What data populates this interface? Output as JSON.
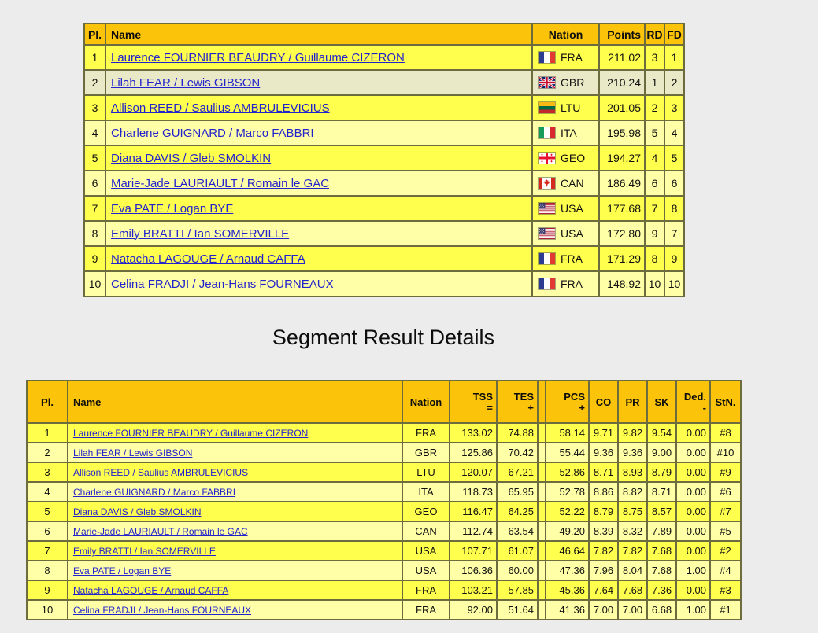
{
  "colors": {
    "header_gold": "#FCC30B",
    "row_bright": "#FFFF4D",
    "row_pale": "#FFFFA8",
    "row_highlight": "#E9E9C7",
    "link_blue": "#2323CD",
    "page_background": "#ECECEC"
  },
  "segment_title": "Segment Result Details",
  "summary_table": {
    "columns": [
      {
        "key": "pl",
        "label": "Pl."
      },
      {
        "key": "name",
        "label": "Name"
      },
      {
        "key": "nation",
        "label": "Nation"
      },
      {
        "key": "points",
        "label": "Points"
      },
      {
        "key": "rd",
        "label": "RD"
      },
      {
        "key": "fd",
        "label": "FD"
      }
    ],
    "highlighted_row": 2,
    "rows": [
      {
        "pl": "1",
        "name": "Laurence FOURNIER BEAUDRY / Guillaume CIZERON",
        "nation": "FRA",
        "points": "211.02",
        "rd": "3",
        "fd": "1"
      },
      {
        "pl": "2",
        "name": "Lilah FEAR / Lewis GIBSON",
        "nation": "GBR",
        "points": "210.24",
        "rd": "1",
        "fd": "2"
      },
      {
        "pl": "3",
        "name": "Allison REED / Saulius AMBRULEVICIUS",
        "nation": "LTU",
        "points": "201.05",
        "rd": "2",
        "fd": "3"
      },
      {
        "pl": "4",
        "name": "Charlene GUIGNARD / Marco FABBRI",
        "nation": "ITA",
        "points": "195.98",
        "rd": "5",
        "fd": "4"
      },
      {
        "pl": "5",
        "name": "Diana DAVIS / Gleb SMOLKIN",
        "nation": "GEO",
        "points": "194.27",
        "rd": "4",
        "fd": "5"
      },
      {
        "pl": "6",
        "name": "Marie-Jade LAURIAULT / Romain le GAC",
        "nation": "CAN",
        "points": "186.49",
        "rd": "6",
        "fd": "6"
      },
      {
        "pl": "7",
        "name": "Eva PATE / Logan BYE",
        "nation": "USA",
        "points": "177.68",
        "rd": "7",
        "fd": "8"
      },
      {
        "pl": "8",
        "name": "Emily BRATTI / Ian SOMERVILLE",
        "nation": "USA",
        "points": "172.80",
        "rd": "9",
        "fd": "7"
      },
      {
        "pl": "9",
        "name": "Natacha LAGOUGE / Arnaud CAFFA",
        "nation": "FRA",
        "points": "171.29",
        "rd": "8",
        "fd": "9"
      },
      {
        "pl": "10",
        "name": "Celina FRADJI / Jean-Hans FOURNEAUX",
        "nation": "FRA",
        "points": "148.92",
        "rd": "10",
        "fd": "10"
      }
    ]
  },
  "details_table": {
    "columns": [
      {
        "key": "pl",
        "label": "Pl."
      },
      {
        "key": "name",
        "label": "Name"
      },
      {
        "key": "nation",
        "label": "Nation"
      },
      {
        "key": "tss",
        "label": "TSS",
        "sub": "="
      },
      {
        "key": "tes",
        "label": "TES",
        "sub": "+"
      },
      {
        "key": "sep",
        "label": ""
      },
      {
        "key": "pcs",
        "label": "PCS",
        "sub": "+"
      },
      {
        "key": "co",
        "label": "CO"
      },
      {
        "key": "pr",
        "label": "PR"
      },
      {
        "key": "sk",
        "label": "SK"
      },
      {
        "key": "ded",
        "label": "Ded.",
        "sub": "-"
      },
      {
        "key": "stn",
        "label": "StN."
      }
    ],
    "rows": [
      {
        "pl": "1",
        "name": "Laurence FOURNIER BEAUDRY / Guillaume CIZERON",
        "nation": "FRA",
        "tss": "133.02",
        "tes": "74.88",
        "pcs": "58.14",
        "co": "9.71",
        "pr": "9.82",
        "sk": "9.54",
        "ded": "0.00",
        "stn": "#8"
      },
      {
        "pl": "2",
        "name": "Lilah FEAR / Lewis GIBSON",
        "nation": "GBR",
        "tss": "125.86",
        "tes": "70.42",
        "pcs": "55.44",
        "co": "9.36",
        "pr": "9.36",
        "sk": "9.00",
        "ded": "0.00",
        "stn": "#10"
      },
      {
        "pl": "3",
        "name": "Allison REED / Saulius AMBRULEVICIUS",
        "nation": "LTU",
        "tss": "120.07",
        "tes": "67.21",
        "pcs": "52.86",
        "co": "8.71",
        "pr": "8.93",
        "sk": "8.79",
        "ded": "0.00",
        "stn": "#9"
      },
      {
        "pl": "4",
        "name": "Charlene GUIGNARD / Marco FABBRI",
        "nation": "ITA",
        "tss": "118.73",
        "tes": "65.95",
        "pcs": "52.78",
        "co": "8.86",
        "pr": "8.82",
        "sk": "8.71",
        "ded": "0.00",
        "stn": "#6"
      },
      {
        "pl": "5",
        "name": "Diana DAVIS / Gleb SMOLKIN",
        "nation": "GEO",
        "tss": "116.47",
        "tes": "64.25",
        "pcs": "52.22",
        "co": "8.79",
        "pr": "8.75",
        "sk": "8.57",
        "ded": "0.00",
        "stn": "#7"
      },
      {
        "pl": "6",
        "name": "Marie-Jade LAURIAULT / Romain le GAC",
        "nation": "CAN",
        "tss": "112.74",
        "tes": "63.54",
        "pcs": "49.20",
        "co": "8.39",
        "pr": "8.32",
        "sk": "7.89",
        "ded": "0.00",
        "stn": "#5"
      },
      {
        "pl": "7",
        "name": "Emily BRATTI / Ian SOMERVILLE",
        "nation": "USA",
        "tss": "107.71",
        "tes": "61.07",
        "pcs": "46.64",
        "co": "7.82",
        "pr": "7.82",
        "sk": "7.68",
        "ded": "0.00",
        "stn": "#2"
      },
      {
        "pl": "8",
        "name": "Eva PATE / Logan BYE",
        "nation": "USA",
        "tss": "106.36",
        "tes": "60.00",
        "pcs": "47.36",
        "co": "7.96",
        "pr": "8.04",
        "sk": "7.68",
        "ded": "1.00",
        "stn": "#4"
      },
      {
        "pl": "9",
        "name": "Natacha LAGOUGE / Arnaud CAFFA",
        "nation": "FRA",
        "tss": "103.21",
        "tes": "57.85",
        "pcs": "45.36",
        "co": "7.64",
        "pr": "7.68",
        "sk": "7.36",
        "ded": "0.00",
        "stn": "#3"
      },
      {
        "pl": "10",
        "name": "Celina FRADJI / Jean-Hans FOURNEAUX",
        "nation": "FRA",
        "tss": "92.00",
        "tes": "51.64",
        "pcs": "41.36",
        "co": "7.00",
        "pr": "7.00",
        "sk": "6.68",
        "ded": "1.00",
        "stn": "#1"
      }
    ]
  }
}
